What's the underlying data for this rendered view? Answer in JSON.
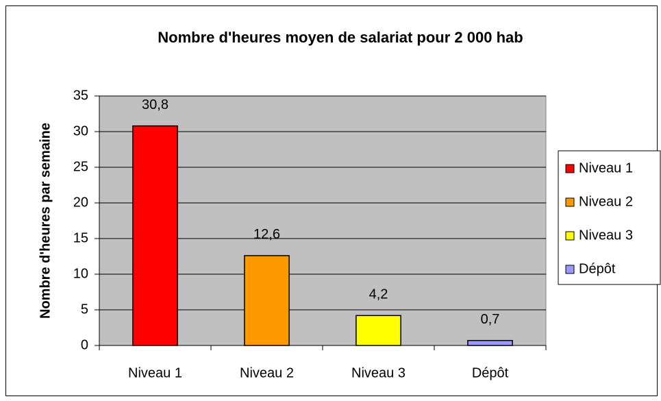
{
  "chart_data": {
    "type": "bar",
    "title": "Nombre d'heures moyen de salariat pour 2 000 hab",
    "y_label": "Nombre d'heures par semaine",
    "categories": [
      "Niveau 1",
      "Niveau 2",
      "Niveau 3",
      "Dépôt"
    ],
    "values": [
      30.8,
      12.6,
      4.2,
      0.7
    ],
    "value_labels": [
      "30,8",
      "12,6",
      "4,2",
      "0,7"
    ],
    "colors": [
      "#ff0000",
      "#ff9900",
      "#ffff00",
      "#9999ff"
    ],
    "ylim": [
      0,
      35
    ],
    "yticks": [
      0,
      5,
      10,
      15,
      20,
      25,
      30,
      35
    ],
    "grid": true,
    "legend": "right"
  }
}
